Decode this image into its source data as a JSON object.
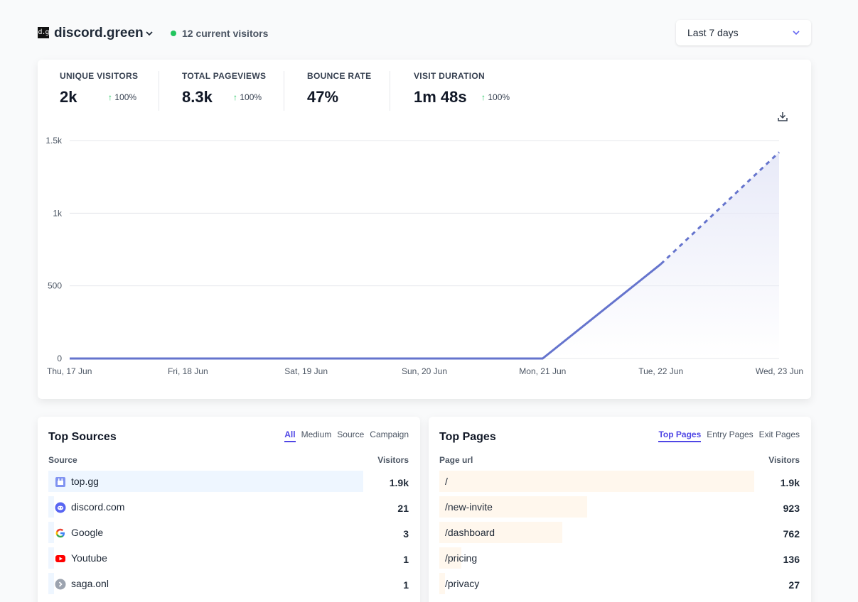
{
  "header": {
    "site_icon_text": "d.g",
    "site_name": "discord.green",
    "live_visitors": "12 current visitors",
    "period": "Last 7 days"
  },
  "stats": [
    {
      "label": "UNIQUE VISITORS",
      "value": "2k",
      "change": "100%"
    },
    {
      "label": "TOTAL PAGEVIEWS",
      "value": "8.3k",
      "change": "100%"
    },
    {
      "label": "BOUNCE RATE",
      "value": "47%",
      "change": ""
    },
    {
      "label": "VISIT DURATION",
      "value": "1m 48s",
      "change": "100%"
    }
  ],
  "chart_data": {
    "type": "line",
    "title": "",
    "xlabel": "",
    "ylabel": "",
    "categories": [
      "Thu, 17 Jun",
      "Fri, 18 Jun",
      "Sat, 19 Jun",
      "Sun, 20 Jun",
      "Mon, 21 Jun",
      "Tue, 22 Jun",
      "Wed, 23 Jun"
    ],
    "series": [
      {
        "values": [
          0,
          0,
          0,
          0,
          0,
          650,
          1420
        ]
      }
    ],
    "incomplete_last_point": true,
    "ylim": [
      0,
      1500
    ],
    "yticks": [
      0,
      500,
      1000,
      1500
    ],
    "ytick_labels": [
      "0",
      "500",
      "1k",
      "1.5k"
    ],
    "grid": true,
    "color": "#6574cd",
    "fill_color": "#e8eaf8"
  },
  "sources": {
    "title": "Top Sources",
    "tabs": [
      {
        "label": "All",
        "active": true
      },
      {
        "label": "Medium",
        "active": false
      },
      {
        "label": "Source",
        "active": false
      },
      {
        "label": "Campaign",
        "active": false
      }
    ],
    "col_left": "Source",
    "col_right": "Visitors",
    "bar_color": "#eef6ff",
    "rows": [
      {
        "label": "top.gg",
        "value": "1.9k",
        "share": 1.0,
        "icon": "topgg-icon"
      },
      {
        "label": "discord.com",
        "value": "21",
        "share": 0.011,
        "icon": "discord-icon"
      },
      {
        "label": "Google",
        "value": "3",
        "share": 0.002,
        "icon": "google-icon"
      },
      {
        "label": "Youtube",
        "value": "1",
        "share": 0.001,
        "icon": "youtube-icon"
      },
      {
        "label": "saga.onl",
        "value": "1",
        "share": 0.001,
        "icon": "link-icon"
      }
    ]
  },
  "pages": {
    "title": "Top Pages",
    "tabs": [
      {
        "label": "Top Pages",
        "active": true
      },
      {
        "label": "Entry Pages",
        "active": false
      },
      {
        "label": "Exit Pages",
        "active": false
      }
    ],
    "col_left": "Page url",
    "col_right": "Visitors",
    "bar_color": "#fff7ed",
    "rows": [
      {
        "label": "/",
        "value": "1.9k",
        "share": 1.0
      },
      {
        "label": "/new-invite",
        "value": "923",
        "share": 0.47
      },
      {
        "label": "/dashboard",
        "value": "762",
        "share": 0.39
      },
      {
        "label": "/pricing",
        "value": "136",
        "share": 0.07
      },
      {
        "label": "/privacy",
        "value": "27",
        "share": 0.014
      }
    ]
  }
}
